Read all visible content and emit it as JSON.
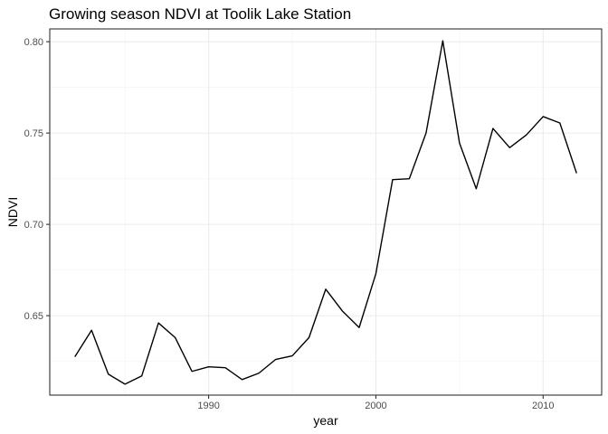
{
  "chart_data": {
    "type": "line",
    "title": "Growing season NDVI at Toolik Lake Station",
    "xlabel": "year",
    "ylabel": "NDVI",
    "xlim": [
      1980.5,
      2013.5
    ],
    "ylim": [
      0.6065,
      0.807
    ],
    "x_major_ticks": [
      1990,
      2000,
      2010
    ],
    "x_minor_ticks": [
      1985,
      1995,
      2005
    ],
    "y_major_ticks": [
      0.65,
      0.7,
      0.75,
      0.8
    ],
    "y_major_tick_labels": [
      "0.65",
      "0.70",
      "0.75",
      "0.80"
    ],
    "y_minor_ticks": [
      0.625,
      0.675,
      0.725,
      0.775
    ],
    "grid": true,
    "colors": {
      "line": "#000000",
      "panel": "#ffffff",
      "grid": "#ebebeb",
      "border": "#333333"
    },
    "x": [
      1982,
      1983,
      1984,
      1985,
      1986,
      1987,
      1988,
      1989,
      1990,
      1991,
      1992,
      1993,
      1994,
      1995,
      1996,
      1997,
      1998,
      1999,
      2000,
      2001,
      2002,
      2003,
      2004,
      2005,
      2006,
      2007,
      2008,
      2009,
      2010,
      2011,
      2012
    ],
    "y": [
      0.6275,
      0.642,
      0.618,
      0.6125,
      0.617,
      0.646,
      0.638,
      0.6195,
      0.622,
      0.6215,
      0.615,
      0.6185,
      0.626,
      0.628,
      0.638,
      0.6645,
      0.6525,
      0.6435,
      0.673,
      0.7245,
      0.725,
      0.75,
      0.8005,
      0.7445,
      0.7195,
      0.7525,
      0.742,
      0.749,
      0.759,
      0.7555,
      0.728
    ]
  }
}
